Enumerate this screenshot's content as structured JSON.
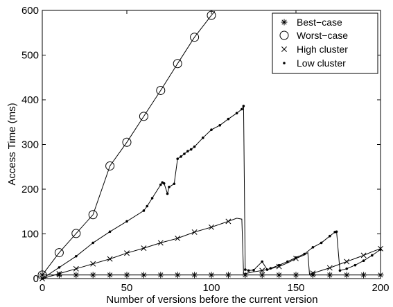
{
  "chart_data": {
    "type": "line",
    "title": "",
    "xlabel": "Number of versions before the current version",
    "ylabel": "Access Time (ms)",
    "xlim": [
      0,
      200
    ],
    "ylim": [
      0,
      600
    ],
    "xticks": [
      "0",
      "50",
      "100",
      "150",
      "200"
    ],
    "yticks": [
      "0",
      "100",
      "200",
      "300",
      "400",
      "500",
      "600"
    ],
    "grid": false,
    "legend_position": "top-right",
    "series": [
      {
        "name": "Best−case",
        "marker": "asterisk",
        "x": [
          0,
          10,
          20,
          30,
          40,
          50,
          60,
          70,
          80,
          90,
          100,
          110,
          120,
          130,
          140,
          150,
          160,
          170,
          180,
          190,
          200
        ],
        "y": [
          8,
          8,
          8,
          8,
          8,
          8,
          8,
          8,
          8,
          8,
          8,
          8,
          8,
          8,
          8,
          8,
          8,
          8,
          8,
          8,
          8
        ]
      },
      {
        "name": "Worst−case",
        "marker": "circle",
        "x": [
          0,
          10,
          20,
          30,
          40,
          50,
          60,
          70,
          80,
          90,
          100,
          102
        ],
        "y": [
          8,
          58,
          101,
          143,
          252,
          305,
          363,
          421,
          481,
          540,
          589,
          598
        ]
      },
      {
        "name": "High cluster",
        "marker": "x",
        "x": [
          0,
          10,
          20,
          30,
          40,
          50,
          60,
          70,
          80,
          90,
          100,
          110,
          115,
          118,
          119,
          121,
          125,
          130,
          135,
          140,
          145,
          150,
          155,
          157,
          158,
          160,
          165,
          170,
          175,
          180,
          185,
          190,
          195,
          200
        ],
        "y": [
          0,
          11,
          22,
          33,
          44,
          57,
          68,
          80,
          90,
          104,
          115,
          128,
          135,
          133,
          11,
          12,
          15,
          18,
          22,
          27,
          35,
          45,
          53,
          58,
          10,
          12,
          18,
          24,
          31,
          38,
          45,
          52,
          60,
          67
        ]
      },
      {
        "name": "Low cluster",
        "marker": "dot",
        "x": [
          0,
          10,
          20,
          30,
          40,
          50,
          60,
          62,
          65,
          70,
          71,
          72,
          74,
          75,
          78,
          80,
          82,
          84,
          86,
          88,
          90,
          95,
          100,
          105,
          110,
          115,
          118,
          119,
          120,
          122,
          125,
          130,
          133,
          135,
          140,
          145,
          150,
          155,
          160,
          165,
          170,
          173,
          174,
          176,
          180,
          185,
          190,
          195,
          200
        ],
        "y": [
          0,
          25,
          50,
          80,
          105,
          128,
          152,
          162,
          180,
          210,
          215,
          213,
          190,
          205,
          212,
          268,
          273,
          279,
          285,
          289,
          295,
          315,
          333,
          343,
          357,
          370,
          379,
          386,
          20,
          18,
          19,
          38,
          20,
          23,
          30,
          38,
          47,
          55,
          70,
          80,
          95,
          104,
          105,
          18,
          22,
          30,
          40,
          52,
          65
        ]
      }
    ]
  }
}
